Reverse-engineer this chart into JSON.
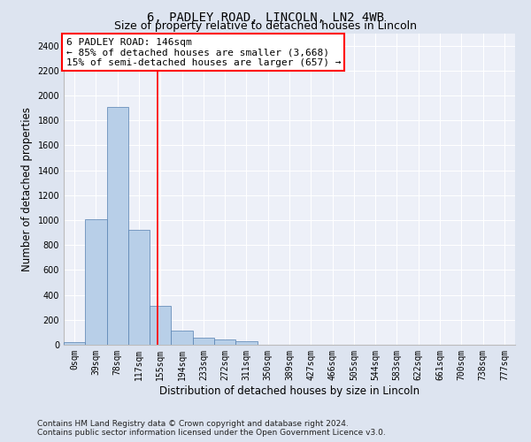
{
  "title": "6, PADLEY ROAD, LINCOLN, LN2 4WB",
  "subtitle": "Size of property relative to detached houses in Lincoln",
  "xlabel": "Distribution of detached houses by size in Lincoln",
  "ylabel": "Number of detached properties",
  "bin_labels": [
    "0sqm",
    "39sqm",
    "78sqm",
    "117sqm",
    "155sqm",
    "194sqm",
    "233sqm",
    "272sqm",
    "311sqm",
    "350sqm",
    "389sqm",
    "427sqm",
    "466sqm",
    "505sqm",
    "544sqm",
    "583sqm",
    "622sqm",
    "661sqm",
    "700sqm",
    "738sqm",
    "777sqm"
  ],
  "bar_values": [
    20,
    1010,
    1910,
    920,
    315,
    110,
    58,
    40,
    28,
    0,
    0,
    0,
    0,
    0,
    0,
    0,
    0,
    0,
    0,
    0,
    0
  ],
  "bar_color": "#b8cfe8",
  "bar_edge_color": "#5580b0",
  "ylim": [
    0,
    2500
  ],
  "yticks": [
    0,
    200,
    400,
    600,
    800,
    1000,
    1200,
    1400,
    1600,
    1800,
    2000,
    2200,
    2400
  ],
  "vline_x": 3.85,
  "vline_color": "red",
  "annotation_box_text": "6 PADLEY ROAD: 146sqm\n← 85% of detached houses are smaller (3,668)\n15% of semi-detached houses are larger (657) →",
  "footer_text": "Contains HM Land Registry data © Crown copyright and database right 2024.\nContains public sector information licensed under the Open Government Licence v3.0.",
  "bg_color": "#dde4f0",
  "plot_bg_color": "#edf0f8",
  "grid_color": "#ffffff",
  "title_fontsize": 10,
  "subtitle_fontsize": 9,
  "axis_label_fontsize": 8.5,
  "tick_fontsize": 7,
  "footer_fontsize": 6.5,
  "annotation_fontsize": 8
}
